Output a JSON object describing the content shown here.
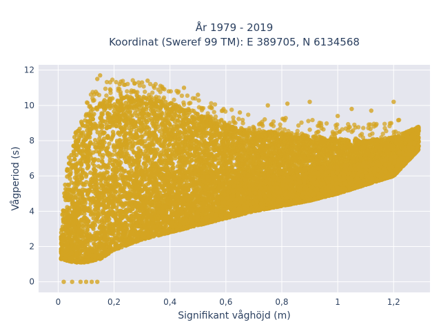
{
  "chart_data": {
    "type": "scatter",
    "title_lines": [
      "År 1979 - 2019",
      "Koordinat (Sweref 99 TM): E 389705, N 6134568"
    ],
    "xlabel": "Signifikant våghöjd (m)",
    "ylabel": "Vågperiod (s)",
    "xlim": [
      -0.07,
      1.33
    ],
    "ylim": [
      -0.6,
      12.3
    ],
    "x_ticks": [
      0,
      0.2,
      0.4,
      0.6,
      0.8,
      1,
      1.2
    ],
    "x_tick_labels": [
      "0",
      "0,2",
      "0,4",
      "0,6",
      "0,8",
      "1",
      "1,2"
    ],
    "y_ticks": [
      0,
      2,
      4,
      6,
      8,
      10,
      12
    ],
    "y_tick_labels": [
      "0",
      "2",
      "4",
      "6",
      "8",
      "10",
      "12"
    ],
    "grid": true,
    "marker_color": "#D4A421",
    "plot_background": "#E5E6EE",
    "density_envelope": [
      {
        "x": 0.01,
        "y_min": 1.3,
        "y_max": 3.0
      },
      {
        "x": 0.03,
        "y_min": 1.2,
        "y_max": 6.5
      },
      {
        "x": 0.06,
        "y_min": 1.1,
        "y_max": 8.5
      },
      {
        "x": 0.1,
        "y_min": 1.1,
        "y_max": 9.5
      },
      {
        "x": 0.15,
        "y_min": 1.3,
        "y_max": 10.3
      },
      {
        "x": 0.2,
        "y_min": 1.8,
        "y_max": 10.6
      },
      {
        "x": 0.3,
        "y_min": 2.4,
        "y_max": 10.5
      },
      {
        "x": 0.4,
        "y_min": 2.8,
        "y_max": 10.2
      },
      {
        "x": 0.5,
        "y_min": 3.2,
        "y_max": 9.5
      },
      {
        "x": 0.6,
        "y_min": 3.6,
        "y_max": 9.0
      },
      {
        "x": 0.7,
        "y_min": 4.0,
        "y_max": 8.5
      },
      {
        "x": 0.8,
        "y_min": 4.3,
        "y_max": 8.5
      },
      {
        "x": 0.9,
        "y_min": 4.6,
        "y_max": 8.3
      },
      {
        "x": 1.0,
        "y_min": 5.0,
        "y_max": 8.1
      },
      {
        "x": 1.1,
        "y_min": 5.5,
        "y_max": 8.0
      },
      {
        "x": 1.2,
        "y_min": 6.0,
        "y_max": 8.2
      },
      {
        "x": 1.29,
        "y_min": 7.5,
        "y_max": 8.8
      }
    ],
    "sample_points": [
      [
        0.15,
        11.7
      ],
      [
        0.14,
        11.5
      ],
      [
        0.22,
        11.2
      ],
      [
        0.32,
        11.4
      ],
      [
        0.3,
        11.3
      ],
      [
        0.45,
        11.0
      ],
      [
        0.5,
        10.6
      ],
      [
        0.82,
        10.1
      ],
      [
        0.9,
        10.2
      ],
      [
        1.2,
        10.2
      ],
      [
        0.75,
        10.0
      ],
      [
        1.05,
        9.8
      ],
      [
        1.12,
        9.7
      ],
      [
        0.65,
        9.6
      ],
      [
        1.0,
        9.4
      ],
      [
        0.02,
        0
      ],
      [
        0.05,
        0
      ],
      [
        0.08,
        0
      ],
      [
        0.1,
        0
      ],
      [
        0.12,
        0
      ],
      [
        0.14,
        0
      ]
    ]
  }
}
